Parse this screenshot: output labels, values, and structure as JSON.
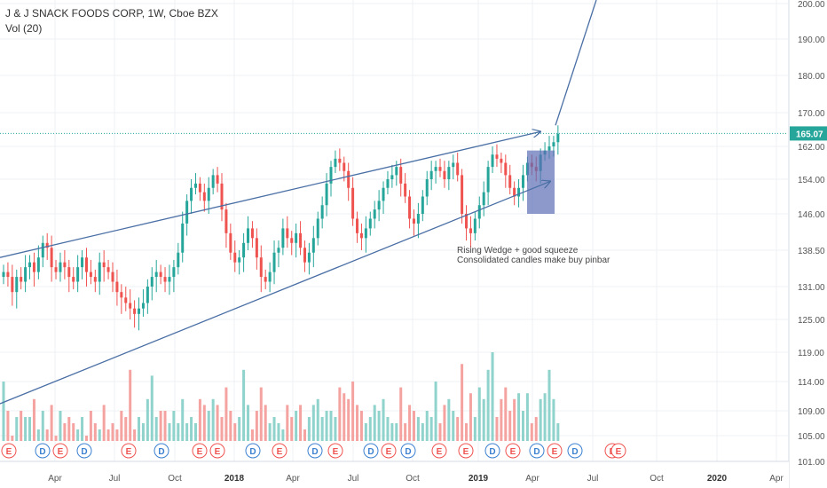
{
  "header": {
    "title": "J & J SNACK FOODS CORP, 1W, Cboe BZX",
    "indicator": "Vol (20)"
  },
  "colors": {
    "up": "#26a69a",
    "down": "#ef5350",
    "vol_up": "#8fd3cc",
    "vol_down": "#f5a3a1",
    "trendline": "#4a6fa5",
    "price_line": "#26a69a",
    "highlight_box": "#5d6db5"
  },
  "chart_data": {
    "type": "candlestick",
    "timeframe": "1W",
    "ylim": [
      101,
      204
    ],
    "y_axis_ticks": [
      "200.00",
      "190.00",
      "180.00",
      "170.00",
      "162.00",
      "154.00",
      "146.00",
      "138.50",
      "131.00",
      "125.00",
      "119.00",
      "114.00",
      "109.00",
      "105.00",
      "101.00"
    ],
    "x_axis_ticks": [
      "Apr",
      "Jul",
      "Oct",
      "2018",
      "Apr",
      "Jul",
      "Oct",
      "2019",
      "Apr",
      "Jul",
      "Oct",
      "2020",
      "Apr"
    ],
    "last_price": "165.07",
    "candles_close": [
      134,
      133,
      130,
      133,
      132,
      135,
      136,
      134,
      137,
      140,
      139,
      135,
      134,
      136,
      135,
      133,
      132,
      135,
      137,
      134,
      133,
      132,
      136,
      135,
      134,
      132,
      130,
      129,
      128,
      127,
      126,
      127,
      128,
      131,
      133,
      134,
      133,
      132,
      133,
      135,
      138,
      144,
      149,
      152,
      153,
      151,
      149,
      152,
      155,
      153,
      147,
      142,
      138,
      136,
      137,
      140,
      143,
      141,
      137,
      133,
      132,
      134,
      138,
      139,
      143,
      141,
      140,
      142,
      139,
      136,
      138,
      141,
      145,
      148,
      153,
      157,
      159,
      158,
      156,
      152,
      145,
      142,
      141,
      143,
      145,
      147,
      149,
      152,
      154,
      155,
      157,
      153,
      150,
      145,
      144,
      146,
      150,
      154,
      156,
      157,
      156,
      154,
      157,
      158,
      155,
      146,
      143,
      142,
      145,
      148,
      151,
      157,
      160,
      159,
      158,
      155,
      152,
      150,
      152,
      155,
      158,
      157,
      156,
      160,
      161,
      162,
      163,
      165
    ],
    "volume": [
      114,
      109,
      105,
      108,
      109,
      108,
      108,
      111,
      106,
      109,
      106,
      110,
      105,
      109,
      107,
      108,
      107,
      106,
      108,
      105,
      109,
      107,
      106,
      110,
      106,
      107,
      106,
      109,
      108,
      116,
      106,
      108,
      107,
      111,
      115,
      108,
      109,
      109,
      107,
      109,
      107,
      111,
      107,
      108,
      107,
      111,
      110,
      109,
      111,
      110,
      108,
      113,
      109,
      107,
      108,
      116,
      110,
      106,
      109,
      113,
      110,
      107,
      108,
      107,
      106,
      110,
      108,
      109,
      110,
      106,
      108,
      110,
      111,
      108,
      109,
      109,
      108,
      113,
      112,
      111,
      114,
      110,
      109,
      107,
      108,
      110,
      109,
      111,
      108,
      107,
      107,
      113,
      107,
      110,
      109,
      108,
      107,
      109,
      108,
      114,
      107,
      110,
      111,
      109,
      108,
      117,
      107,
      112,
      108,
      113,
      111,
      116,
      119,
      108,
      111,
      113,
      109,
      111,
      112,
      109,
      112,
      107,
      108,
      111,
      112,
      116,
      111,
      107
    ],
    "annotations": [
      "Rising Wedge + good squeeze",
      "Consolidated candles make buy pinbar"
    ],
    "event_flags": [
      "E",
      "D",
      "E",
      "D",
      "E",
      "D",
      "E",
      "E",
      "D",
      "E",
      "D",
      "E",
      "D",
      "E",
      "D",
      "E",
      "E",
      "D",
      "E",
      "D",
      "E",
      "D",
      "E",
      "E"
    ]
  }
}
